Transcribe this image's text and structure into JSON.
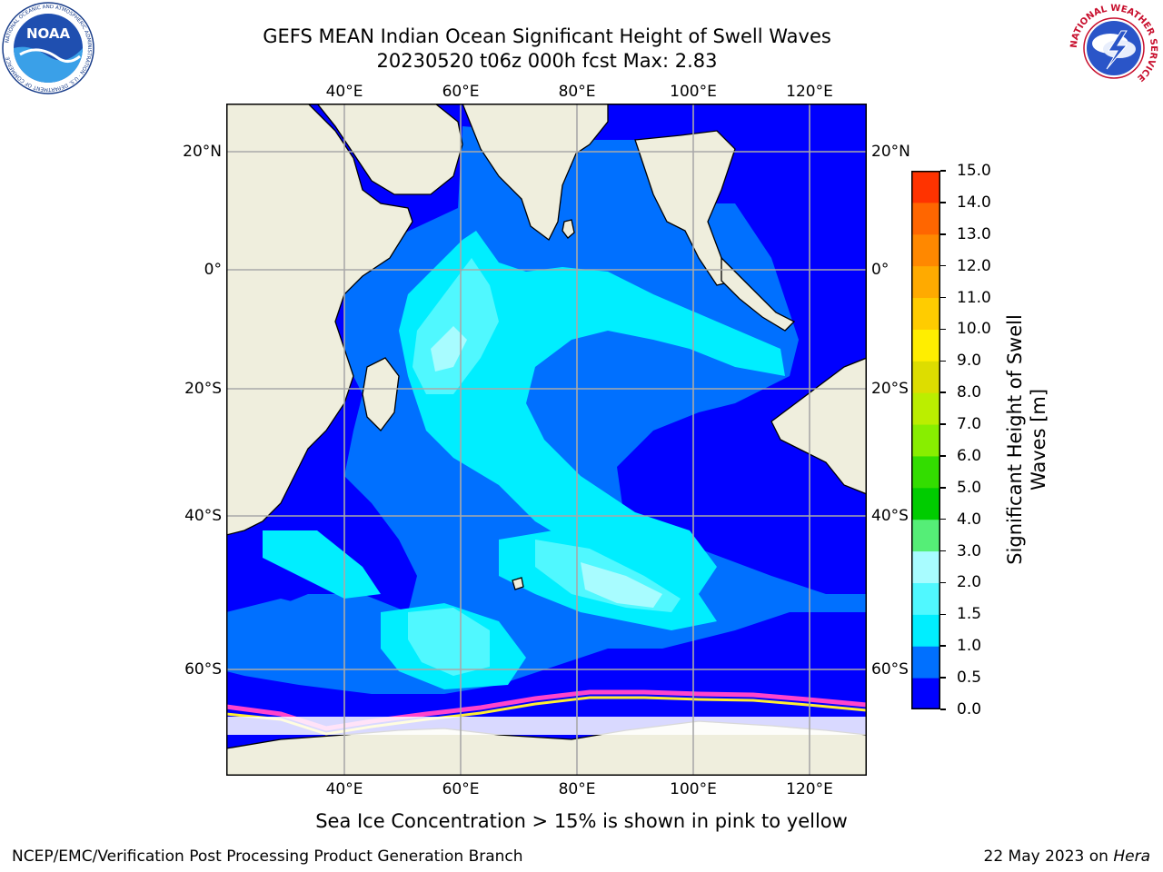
{
  "header": {
    "title_line1": "GEFS MEAN Indian Ocean Significant Height of Swell Waves",
    "title_line2": "20230520 t06z 000h fcst   Max: 2.83"
  },
  "logos": {
    "noaa": {
      "text": "NOAA",
      "ring_text": "NATIONAL OCEANIC AND ATMOSPHERIC ADMINISTRATION · U.S. DEPARTMENT OF COMMERCE"
    },
    "nws": {
      "ring_text": "NATIONAL WEATHER SERVICE"
    }
  },
  "map": {
    "lon_ticks_top": [
      "40°E",
      "60°E",
      "80°E",
      "100°E",
      "120°E"
    ],
    "lon_ticks_bottom": [
      "40°E",
      "60°E",
      "80°E",
      "100°E",
      "120°E"
    ],
    "lat_ticks_left": [
      "20°N",
      "0°",
      "20°S",
      "40°S",
      "60°S"
    ],
    "lat_ticks_right": [
      "20°N",
      "0°",
      "20°S",
      "40°S",
      "60°S"
    ],
    "land_color": "#efeedd",
    "ice_colors": [
      "#ff44cc",
      "#ffaa33",
      "#ffee33"
    ]
  },
  "colorbar": {
    "title": "Significant Height of Swell Waves [m]",
    "title_line1": "Significant Height of Swell",
    "title_line2": "Waves [m]",
    "labels": [
      "0.0",
      "0.5",
      "1.0",
      "1.5",
      "2.0",
      "3.0",
      "4.0",
      "5.0",
      "6.0",
      "7.0",
      "8.0",
      "9.0",
      "10.0",
      "11.0",
      "12.0",
      "13.0",
      "14.0",
      "15.0"
    ],
    "colors": [
      "#0000ff",
      "#0070ff",
      "#00eeff",
      "#50f8ff",
      "#a8fcff",
      "#55ee77",
      "#00cc00",
      "#33dd00",
      "#88ee00",
      "#bbee00",
      "#dddd00",
      "#ffee00",
      "#ffcc00",
      "#ffaa00",
      "#ff8800",
      "#ff6600",
      "#ff3300"
    ]
  },
  "note": "Sea Ice Concentration > 15% is shown in pink to yellow",
  "footer": {
    "left": "NCEP/EMC/Verification Post Processing Product Generation Branch",
    "date": "22 May 2023 on ",
    "host": "Hera"
  }
}
